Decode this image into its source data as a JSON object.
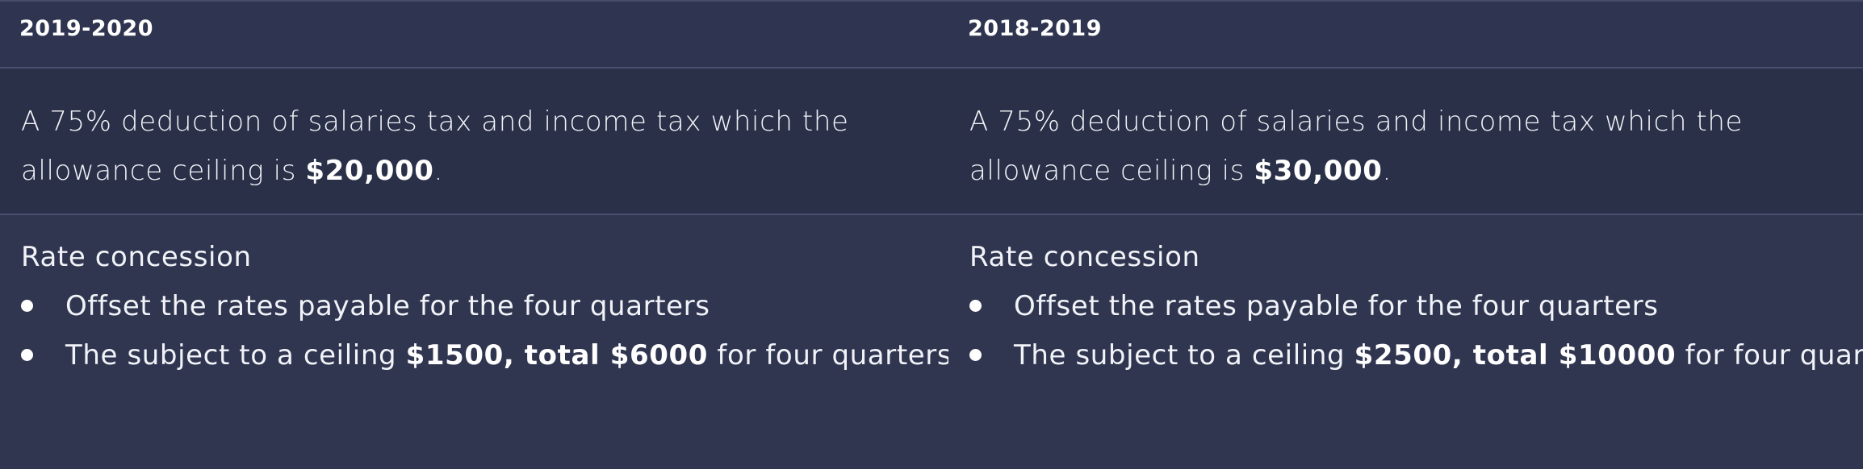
{
  "columns": [
    {
      "header": "2019-2020",
      "deduction": {
        "text_before": "A 75% deduction of salaries tax and income tax which the allowance ceiling is ",
        "amount": "$20,000",
        "text_after": "."
      },
      "rate_concession": {
        "title": "Rate concession",
        "bullet1": "Offset the rates payable for the four quarters",
        "bullet2_before": "The subject to a ceiling ",
        "bullet2_bold": "$1500, total $6000",
        "bullet2_after": " for four quarters"
      }
    },
    {
      "header": "2018-2019",
      "deduction": {
        "text_before": "A 75% deduction of salaries and income tax which the allowance ceiling is ",
        "amount": "$30,000",
        "text_after": "."
      },
      "rate_concession": {
        "title": "Rate concession",
        "bullet1": "Offset the rates payable for the four quarters",
        "bullet2_before": "The subject to a ceiling ",
        "bullet2_bold": "$2500, total $10000",
        "bullet2_after": " for four quarters"
      }
    }
  ]
}
